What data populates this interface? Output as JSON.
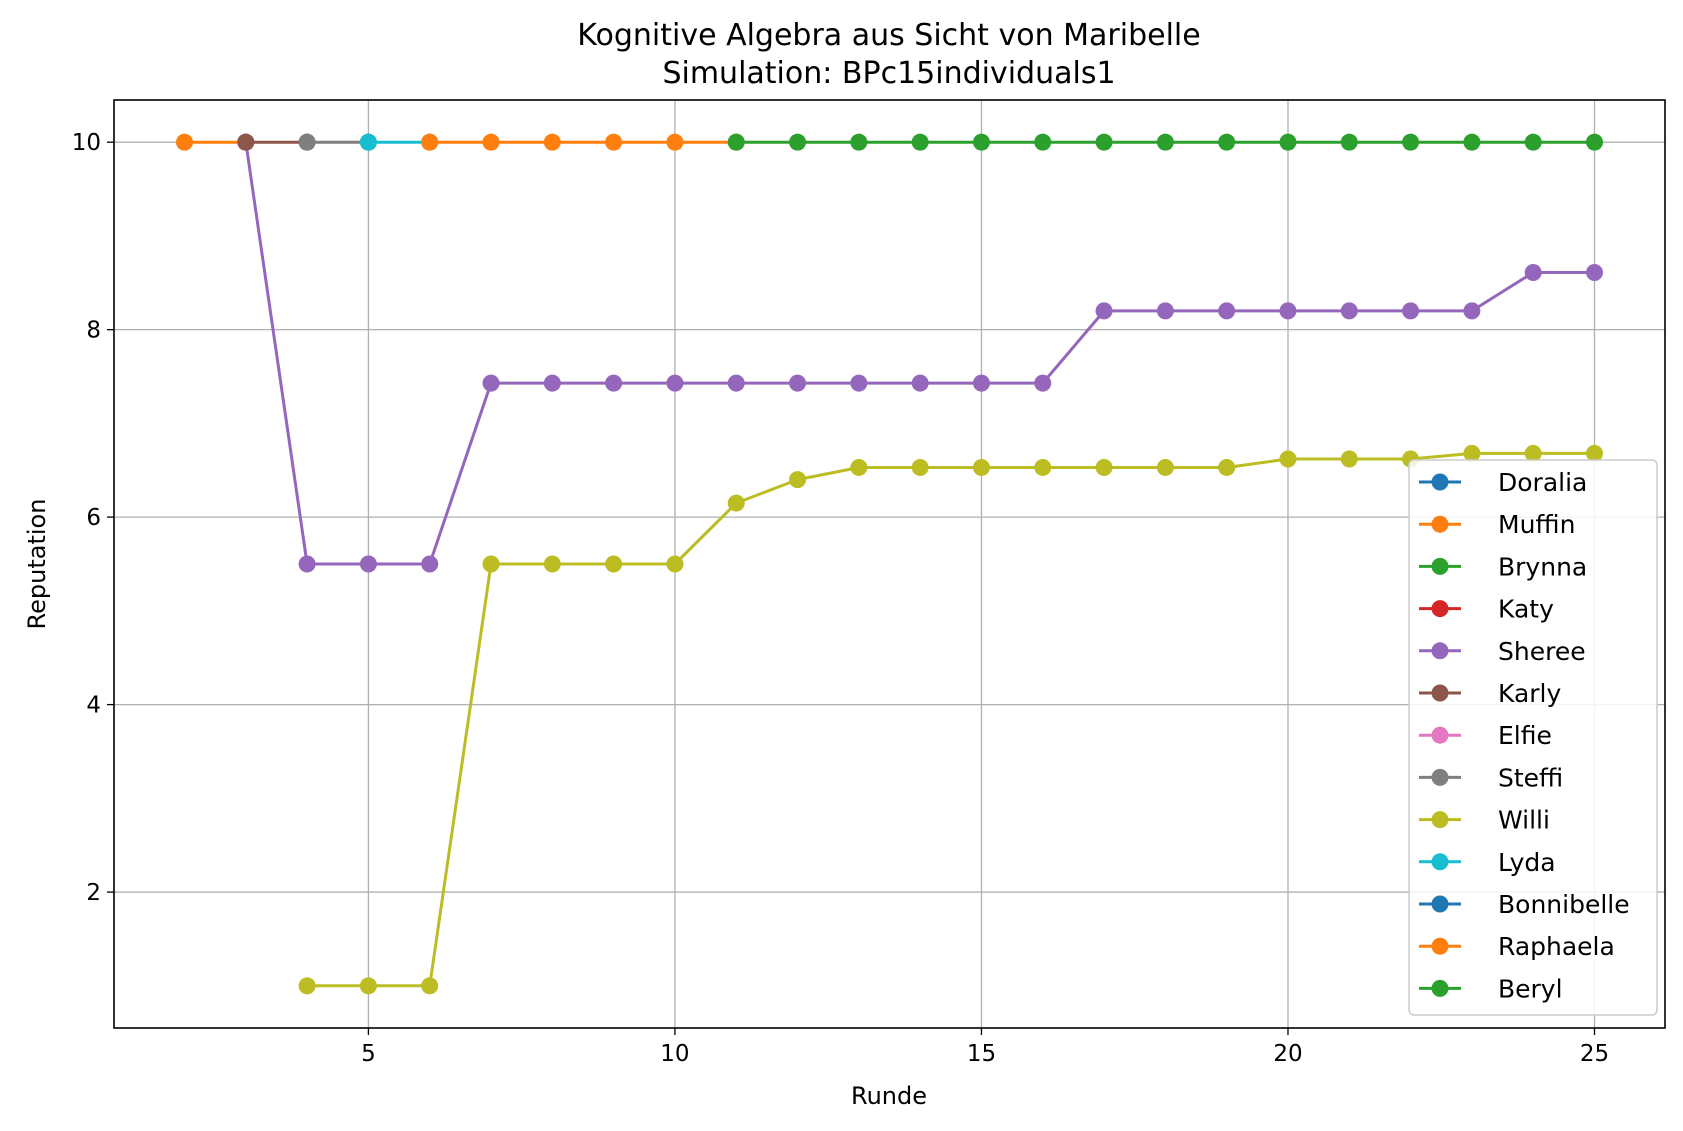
{
  "chart_data": {
    "type": "line",
    "title": "Kognitive Algebra aus Sicht von Maribelle",
    "subtitle": "Simulation: BPc15individuals1",
    "xlabel": "Runde",
    "ylabel": "Reputation",
    "xlim": [
      0.85,
      26.15
    ],
    "ylim": [
      0.55,
      10.45
    ],
    "xticks": [
      5,
      10,
      15,
      20,
      25
    ],
    "yticks": [
      2,
      4,
      6,
      8,
      10
    ],
    "grid": true,
    "legend_position": "lower right",
    "series": [
      {
        "name": "Doralia",
        "color": "#1f77b4",
        "x": [],
        "y": []
      },
      {
        "name": "Muffin",
        "color": "#ff7f0e",
        "x": [
          2,
          3
        ],
        "y": [
          10,
          10
        ]
      },
      {
        "name": "Brynna",
        "color": "#2ca02c",
        "x": [],
        "y": []
      },
      {
        "name": "Katy",
        "color": "#d62728",
        "x": [],
        "y": []
      },
      {
        "name": "Sheree",
        "color": "#9467bd",
        "x": [
          3,
          4,
          5,
          6,
          7,
          8,
          9,
          10,
          11,
          12,
          13,
          14,
          15,
          16,
          17,
          18,
          19,
          20,
          21,
          22,
          23,
          24,
          25
        ],
        "y": [
          10,
          5.5,
          5.5,
          5.5,
          7.43,
          7.43,
          7.43,
          7.43,
          7.43,
          7.43,
          7.43,
          7.43,
          7.43,
          7.43,
          8.2,
          8.2,
          8.2,
          8.2,
          8.2,
          8.2,
          8.2,
          8.61,
          8.61
        ]
      },
      {
        "name": "Karly",
        "color": "#8c564b",
        "x": [
          3,
          4
        ],
        "y": [
          10,
          10
        ]
      },
      {
        "name": "Elfie",
        "color": "#e377c2",
        "x": [],
        "y": []
      },
      {
        "name": "Steffi",
        "color": "#7f7f7f",
        "x": [
          4,
          5
        ],
        "y": [
          10,
          10
        ]
      },
      {
        "name": "Willi",
        "color": "#bcbd22",
        "x": [
          4,
          5,
          6,
          7,
          8,
          9,
          10,
          11,
          12,
          13,
          14,
          15,
          16,
          17,
          18,
          19,
          20,
          21,
          22,
          23,
          24,
          25
        ],
        "y": [
          1,
          1,
          1,
          5.5,
          5.5,
          5.5,
          5.5,
          6.15,
          6.4,
          6.53,
          6.53,
          6.53,
          6.53,
          6.53,
          6.53,
          6.53,
          6.62,
          6.62,
          6.62,
          6.68,
          6.68,
          6.68
        ]
      },
      {
        "name": "Lyda",
        "color": "#17becf",
        "x": [
          5,
          6
        ],
        "y": [
          10,
          10
        ]
      },
      {
        "name": "Bonnibelle",
        "color": "#1f77b4",
        "x": [],
        "y": []
      },
      {
        "name": "Raphaela",
        "color": "#ff7f0e",
        "x": [
          6,
          7,
          8,
          9,
          10,
          11
        ],
        "y": [
          10,
          10,
          10,
          10,
          10,
          10
        ]
      },
      {
        "name": "Beryl",
        "color": "#2ca02c",
        "x": [
          11,
          12,
          13,
          14,
          15,
          16,
          17,
          18,
          19,
          20,
          21,
          22,
          23,
          24,
          25
        ],
        "y": [
          10,
          10,
          10,
          10,
          10,
          10,
          10,
          10,
          10,
          10,
          10,
          10,
          10,
          10,
          10
        ]
      }
    ]
  }
}
